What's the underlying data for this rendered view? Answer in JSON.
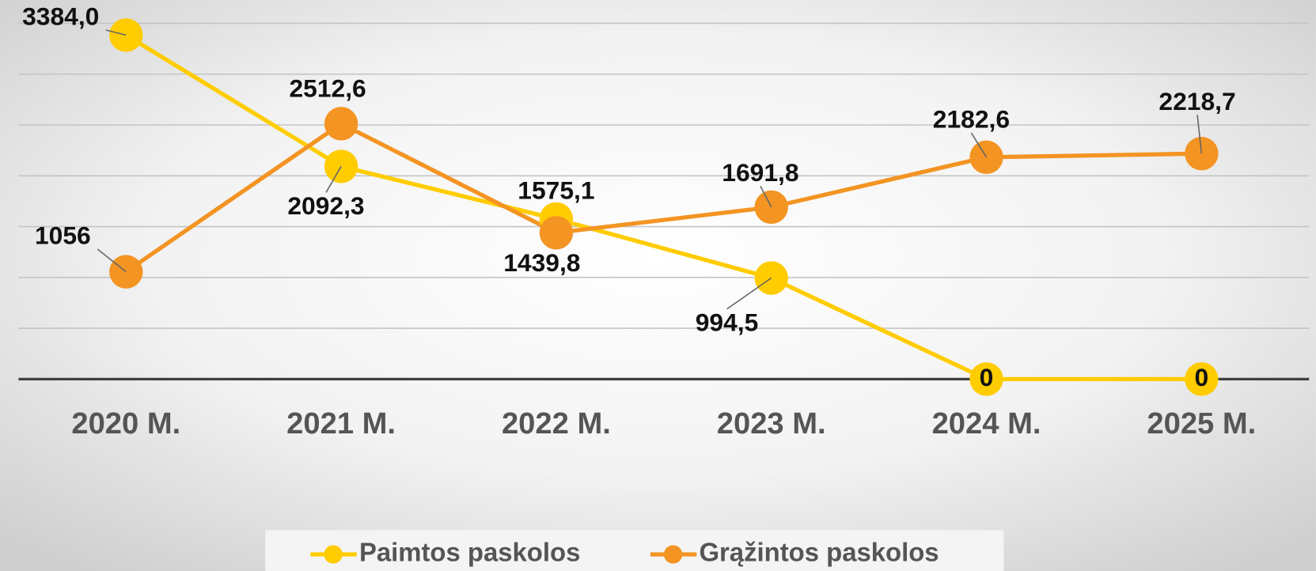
{
  "chart_data": {
    "type": "line",
    "categories": [
      "2020 M.",
      "2021 M.",
      "2022 M.",
      "2023 M.",
      "2024 M.",
      "2025 M."
    ],
    "series": [
      {
        "name": "Paimtos paskolos",
        "color": "#FFCC00",
        "values": [
          3384.0,
          2092.3,
          1575.1,
          994.5,
          0,
          0
        ],
        "value_labels": [
          "3384,0",
          "2092,3",
          "1575,1",
          "994,5",
          "0",
          "0"
        ]
      },
      {
        "name": "Grąžintos paskolos",
        "color": "#F39423",
        "values": [
          1056,
          2512.6,
          1439.8,
          1691.8,
          2182.6,
          2218.7
        ],
        "value_labels": [
          "1056",
          "2512,6",
          "1439,8",
          "1691,8",
          "2182,6",
          "2218,7"
        ]
      }
    ],
    "ylim": [
      0,
      3500
    ],
    "yticks": [
      0,
      500,
      1000,
      1500,
      2000,
      2500,
      3000,
      3500
    ],
    "grid": true,
    "legend": "bottom"
  }
}
